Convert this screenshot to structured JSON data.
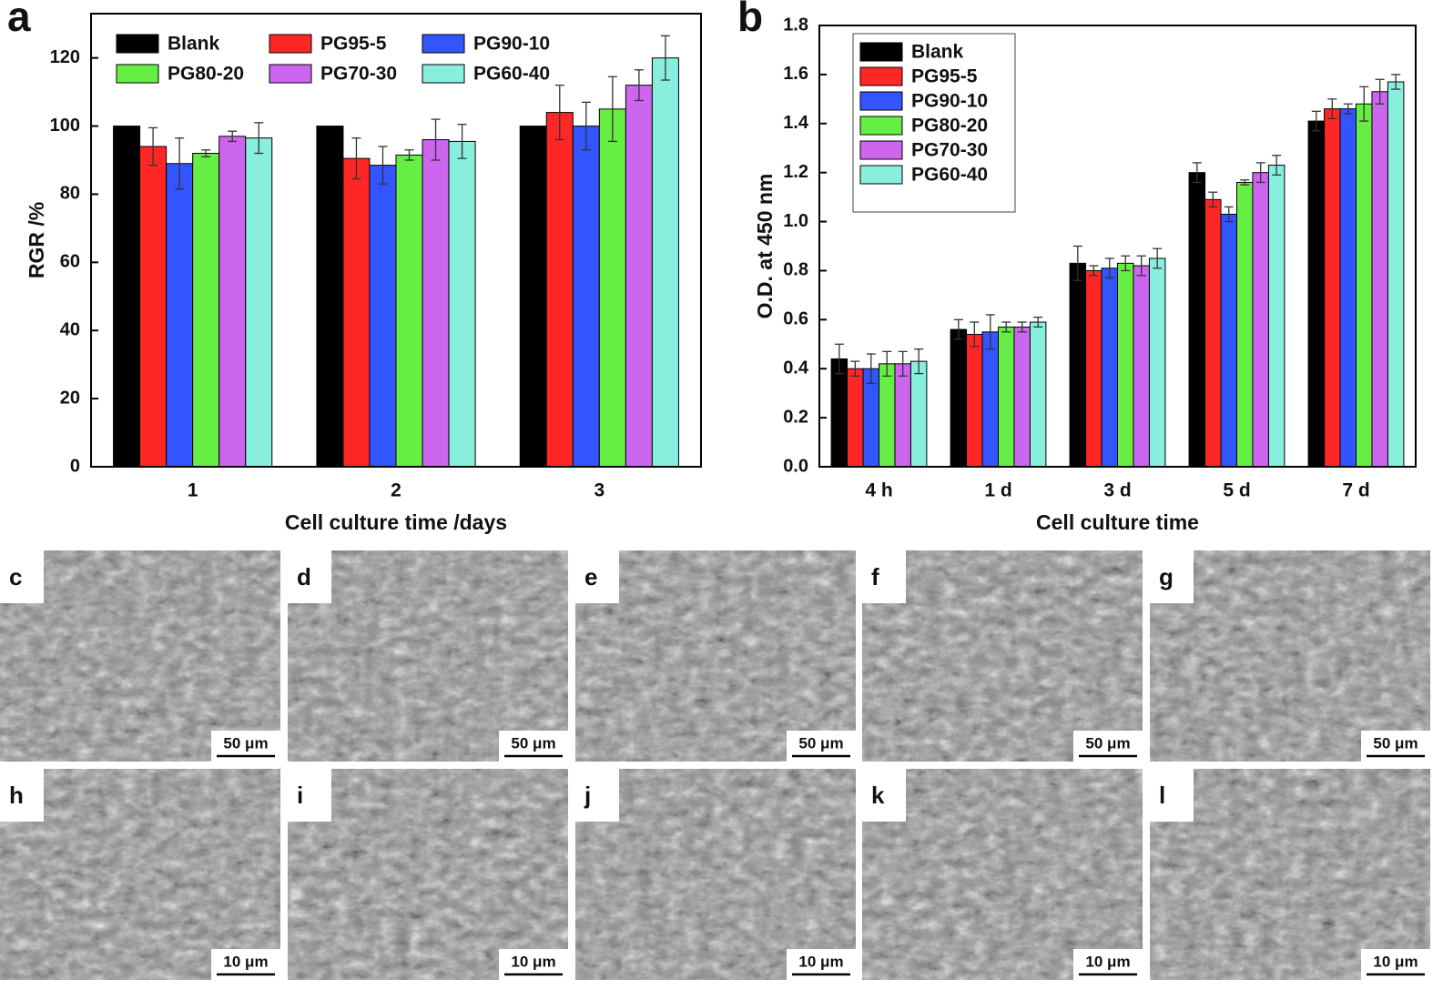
{
  "chart_data": [
    {
      "type": "bar",
      "panel_label": "a",
      "categories": [
        "1",
        "2",
        "3"
      ],
      "xlabel": "Cell culture time /days",
      "ylabel": "RGR /%",
      "ylim": [
        0,
        133
      ],
      "yticks": [
        0,
        20,
        40,
        60,
        80,
        100,
        120
      ],
      "series": [
        {
          "name": "Blank",
          "color": "#000000",
          "values": [
            100,
            100,
            100
          ]
        },
        {
          "name": "PG95-5",
          "color": "#ff2626",
          "values": [
            94,
            90.5,
            104
          ],
          "errors": [
            5.5,
            6,
            8
          ]
        },
        {
          "name": "PG90-10",
          "color": "#3355ff",
          "values": [
            89,
            88.5,
            100
          ],
          "errors": [
            7.5,
            5.5,
            7
          ]
        },
        {
          "name": "PG80-20",
          "color": "#66ee44",
          "values": [
            92,
            91.5,
            105
          ],
          "errors": [
            1,
            1.5,
            9.5
          ]
        },
        {
          "name": "PG70-30",
          "color": "#cc66ee",
          "values": [
            97,
            96,
            112
          ],
          "errors": [
            1.5,
            6,
            4.5
          ]
        },
        {
          "name": "PG60-40",
          "color": "#88eedd",
          "values": [
            96.5,
            95.5,
            120
          ],
          "errors": [
            4.5,
            5,
            6.5
          ]
        }
      ]
    },
    {
      "type": "bar",
      "panel_label": "b",
      "categories": [
        "4 h",
        "1 d",
        "3 d",
        "5 d",
        "7 d"
      ],
      "xlabel": "Cell culture time",
      "ylabel": "O.D. at 450 nm",
      "ylim": [
        0,
        1.8
      ],
      "yticks": [
        {
          "value": 0,
          "label": "0.0"
        },
        0.2,
        0.4,
        0.6,
        0.8,
        {
          "value": 1,
          "label": "1.0"
        },
        1.2,
        1.4,
        1.6,
        1.8
      ],
      "series": [
        {
          "name": "Blank",
          "color": "#000000",
          "values": [
            0.44,
            0.56,
            0.83,
            1.2,
            1.41
          ],
          "errors": [
            0.06,
            0.04,
            0.07,
            0.04,
            0.04
          ]
        },
        {
          "name": "PG95-5",
          "color": "#ff2626",
          "values": [
            0.4,
            0.54,
            0.8,
            1.09,
            1.46
          ],
          "errors": [
            0.03,
            0.05,
            0.02,
            0.03,
            0.04
          ]
        },
        {
          "name": "PG90-10",
          "color": "#3355ff",
          "values": [
            0.4,
            0.55,
            0.81,
            1.03,
            1.46
          ],
          "errors": [
            0.06,
            0.07,
            0.04,
            0.03,
            0.02
          ]
        },
        {
          "name": "PG80-20",
          "color": "#66ee44",
          "values": [
            0.42,
            0.57,
            0.83,
            1.16,
            1.48
          ],
          "errors": [
            0.05,
            0.02,
            0.03,
            0.01,
            0.07
          ]
        },
        {
          "name": "PG70-30",
          "color": "#cc66ee",
          "values": [
            0.42,
            0.57,
            0.82,
            1.2,
            1.53
          ],
          "errors": [
            0.05,
            0.02,
            0.04,
            0.04,
            0.05
          ]
        },
        {
          "name": "PG60-40",
          "color": "#88eedd",
          "values": [
            0.43,
            0.59,
            0.85,
            1.23,
            1.57
          ],
          "errors": [
            0.05,
            0.02,
            0.04,
            0.04,
            0.03
          ]
        }
      ]
    }
  ],
  "image_panels": [
    {
      "label": "c",
      "scale_bar": "50 μm"
    },
    {
      "label": "d",
      "scale_bar": "50 μm"
    },
    {
      "label": "e",
      "scale_bar": "50 μm"
    },
    {
      "label": "f",
      "scale_bar": "50 μm"
    },
    {
      "label": "g",
      "scale_bar": "50 μm"
    },
    {
      "label": "h",
      "scale_bar": "10 μm"
    },
    {
      "label": "i",
      "scale_bar": "10 μm"
    },
    {
      "label": "j",
      "scale_bar": "10 μm"
    },
    {
      "label": "k",
      "scale_bar": "10 μm"
    },
    {
      "label": "l",
      "scale_bar": "10 μm"
    }
  ]
}
